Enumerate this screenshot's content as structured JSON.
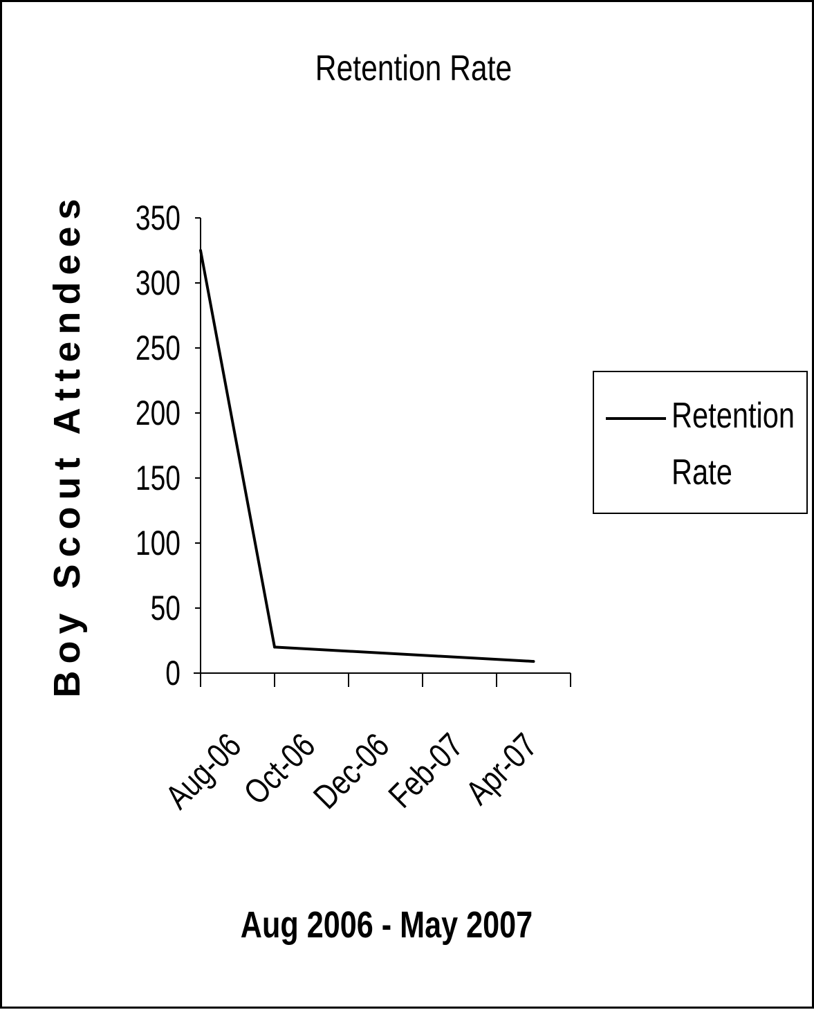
{
  "chart_data": {
    "type": "line",
    "title": "Retention Rate",
    "xlabel": "Aug 2006 - May 2007",
    "ylabel": "Boy Scout Attendees",
    "x_tick_labels": [
      "Aug-06",
      "Oct-06",
      "Dec-06",
      "Feb-07",
      "Apr-07"
    ],
    "y_tick_labels": [
      "0",
      "50",
      "100",
      "150",
      "200",
      "250",
      "300",
      "350"
    ],
    "ylim": [
      0,
      350
    ],
    "grid": false,
    "legend": "right",
    "series": [
      {
        "name": "Retention Rate",
        "color": "#000000",
        "points": [
          {
            "x": "Aug-06",
            "y": 325
          },
          {
            "x": "Oct-06",
            "y": 20
          },
          {
            "x": "May-07",
            "y": 9
          }
        ]
      }
    ]
  }
}
